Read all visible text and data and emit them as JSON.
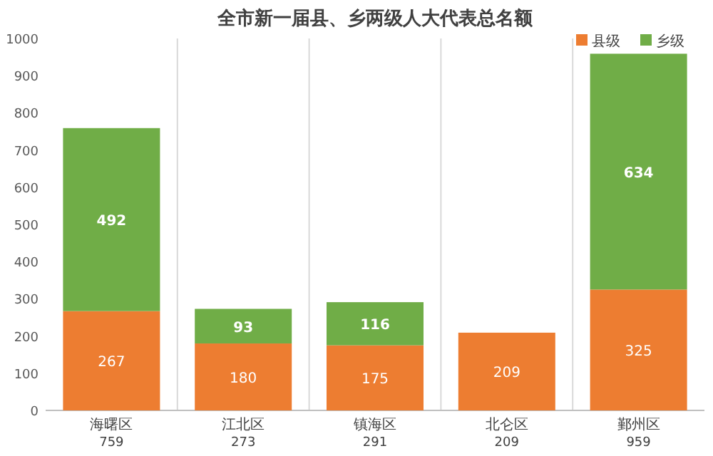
{
  "chart_data": {
    "type": "bar",
    "title": "全市新一届县、乡两级人大代表总名额",
    "categories": [
      "海曙区",
      "江北区",
      "镇海区",
      "北仑区",
      "鄞州区"
    ],
    "series": [
      {
        "name": "县级",
        "color": "#ed7d31",
        "values": [
          267,
          180,
          175,
          209,
          325
        ]
      },
      {
        "name": "乡级",
        "color": "#70ad47",
        "values": [
          492,
          93,
          116,
          null,
          634
        ]
      }
    ],
    "stacked": true,
    "data_labels": true,
    "totals": [
      "759",
      "273",
      "291",
      "209",
      "959"
    ],
    "ylim": [
      0,
      1000
    ],
    "yticks": [
      0,
      100,
      200,
      300,
      400,
      500,
      600,
      700,
      800,
      900,
      1000
    ],
    "grid": "x",
    "legend": "top right"
  }
}
